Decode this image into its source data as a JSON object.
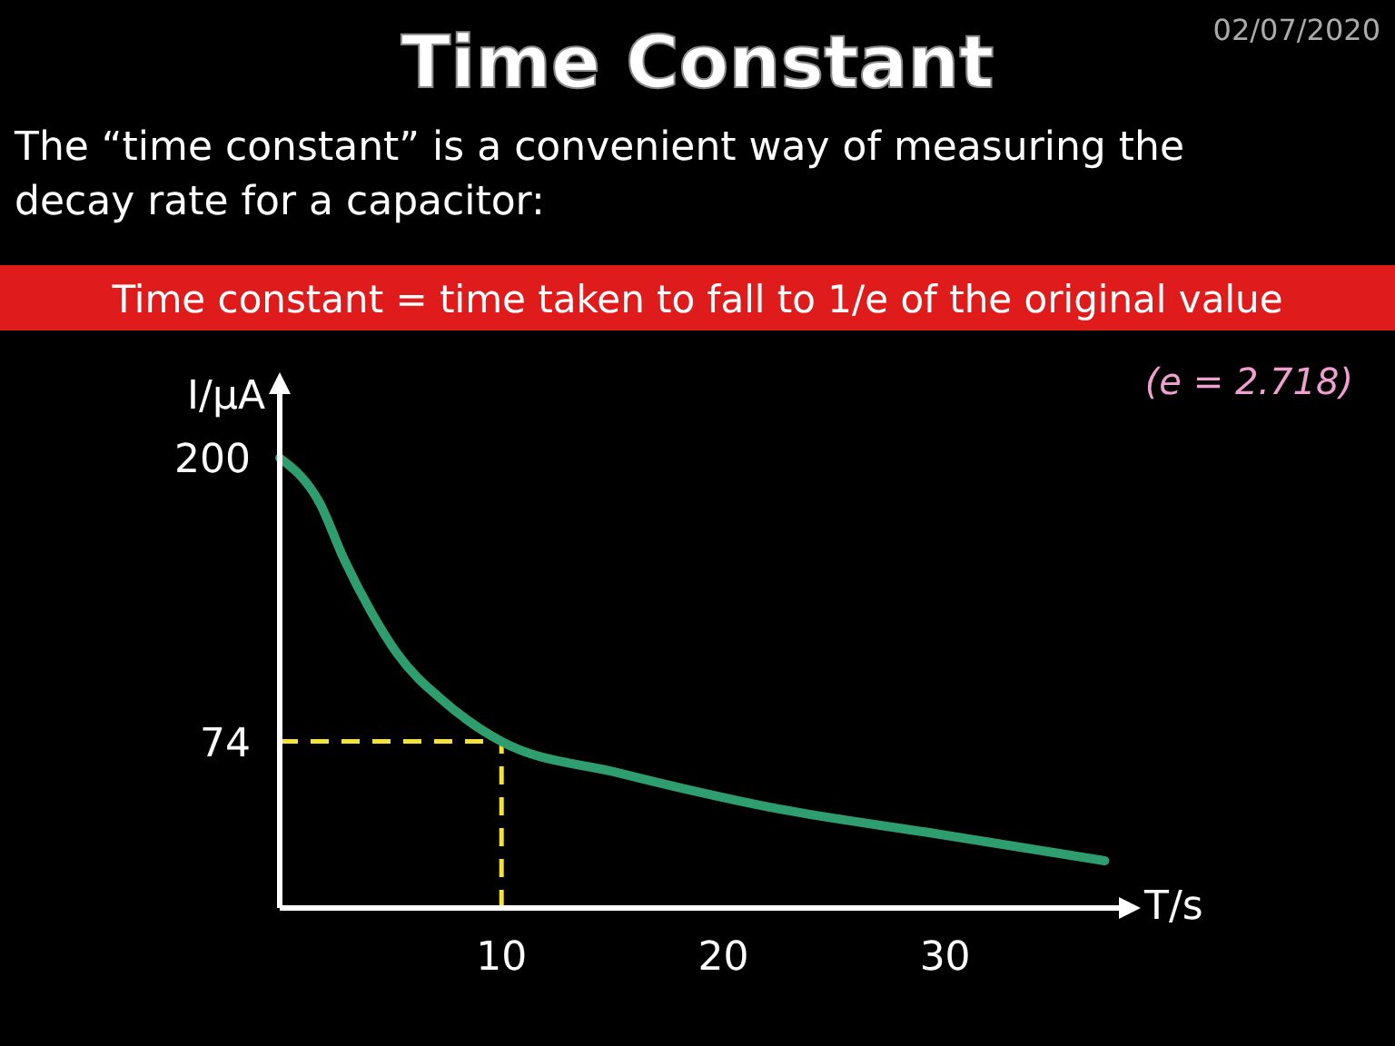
{
  "chart_data": {
    "type": "line",
    "title": "Time Constant",
    "subtitle": "The “time constant” is a convenient way of measuring the decay rate for a capacitor:",
    "annotations": [
      "02/07/2020",
      "Time constant = time taken to fall to 1/e of the original value",
      "(e = 2.718)"
    ],
    "xlabel": "T/s",
    "ylabel": "I/μA",
    "x": [
      0,
      1.8,
      2.9,
      4.1,
      5.3,
      7.5,
      10,
      15.3,
      22.5,
      29.6,
      37.2
    ],
    "series": [
      {
        "color": "#2e9e6e",
        "values": [
          200,
          180,
          155,
          132,
          113,
          91,
          74,
          60,
          44,
          33,
          21
        ]
      }
    ],
    "xlim": [
      0,
      38
    ],
    "ylim": [
      0,
      230
    ],
    "xticks": [
      10,
      20,
      30
    ],
    "yticks": [
      74,
      200
    ],
    "ref_lines": [
      {
        "axis": "x",
        "value": 10,
        "color": "#f2e23a",
        "line_style": "dashed"
      },
      {
        "axis": "y",
        "value": 74,
        "color": "#f2e23a",
        "line_style": "dashed"
      }
    ],
    "line_style": "solid"
  }
}
